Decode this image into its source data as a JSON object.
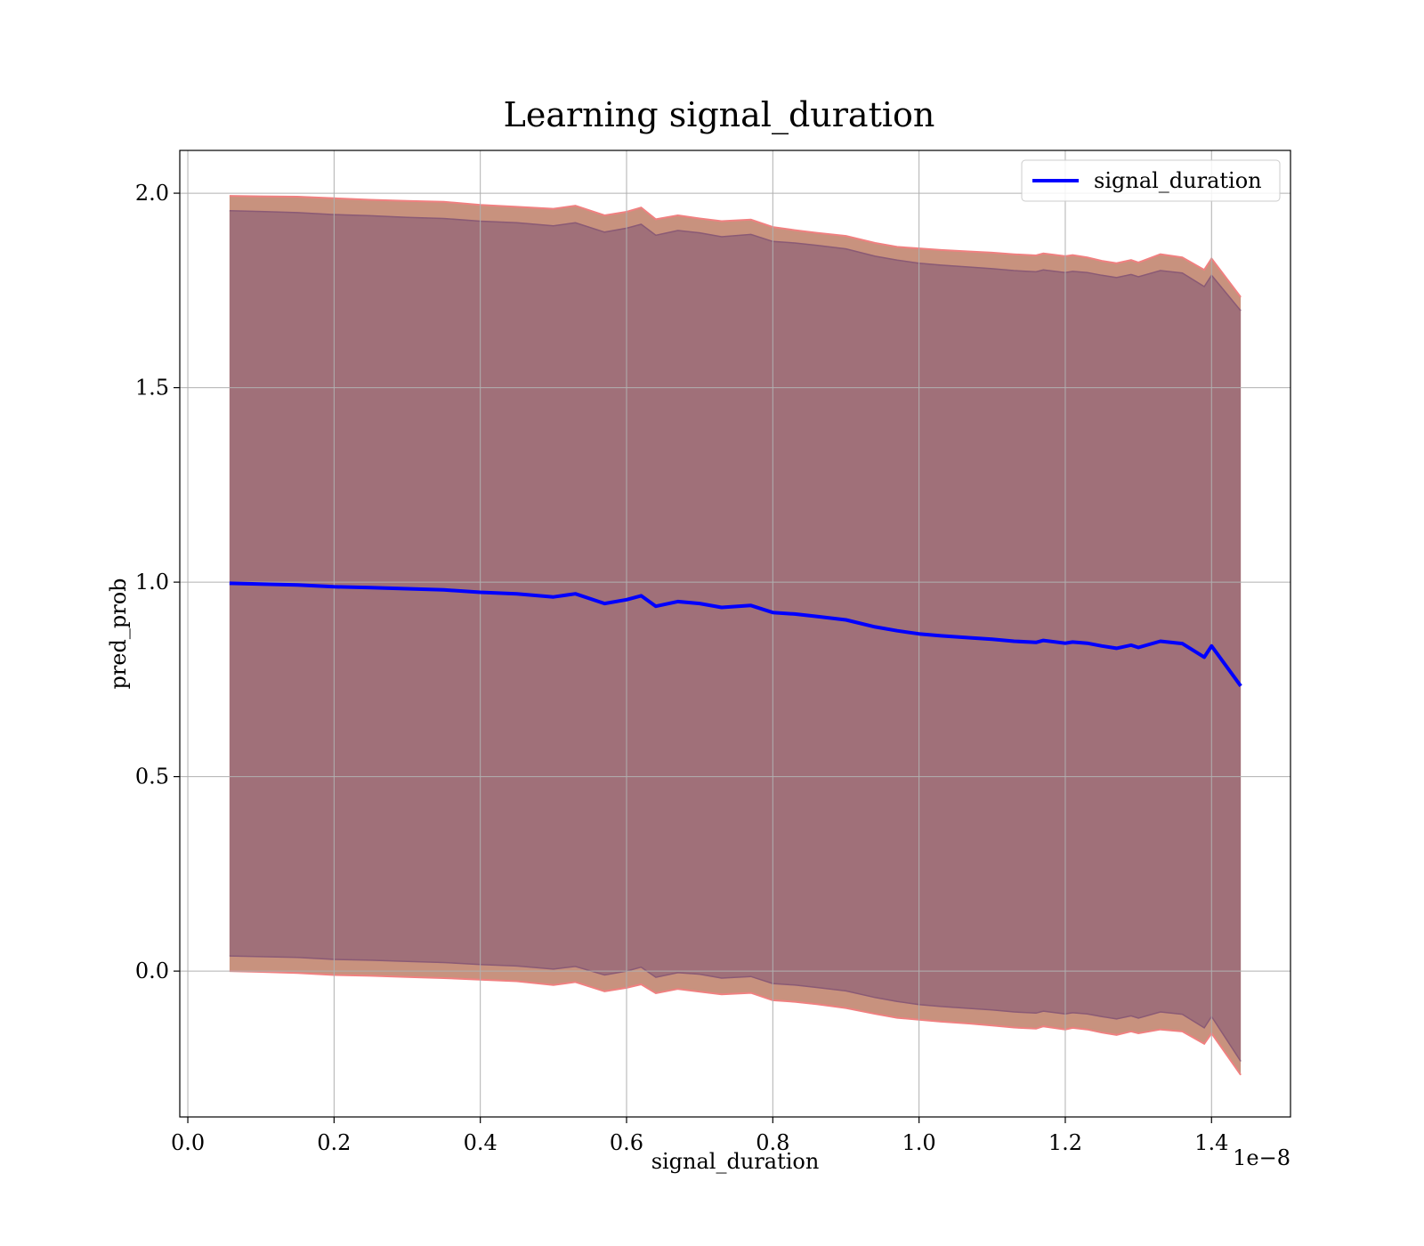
{
  "chart_data": {
    "type": "area",
    "title": "Learning signal_duration",
    "xlabel": "signal_duration",
    "ylabel": "pred_prob",
    "x_offset_label": "1e−8",
    "xlim": [
      -0.011,
      1.508
    ],
    "ylim": [
      -0.375,
      2.11
    ],
    "xticks": [
      0.0,
      0.2,
      0.4,
      0.6,
      0.8,
      1.0,
      1.2,
      1.4
    ],
    "xtick_labels": [
      "0.0",
      "0.2",
      "0.4",
      "0.6",
      "0.8",
      "1.0",
      "1.2",
      "1.4"
    ],
    "yticks": [
      0.0,
      0.5,
      1.0,
      1.5,
      2.0
    ],
    "ytick_labels": [
      "0.0",
      "0.5",
      "1.0",
      "1.5",
      "2.0"
    ],
    "grid": true,
    "legend": {
      "position": "top-right",
      "entries": [
        "signal_duration"
      ]
    },
    "colors": {
      "line": "#0000ff",
      "inner_band": "#a07079",
      "outer_band": "#c8927e",
      "outer_band_edge": "#f08080",
      "inner_band_edge": "#8a5a75"
    },
    "x": [
      0.057,
      0.1,
      0.15,
      0.2,
      0.25,
      0.3,
      0.35,
      0.4,
      0.45,
      0.5,
      0.53,
      0.57,
      0.6,
      0.62,
      0.64,
      0.67,
      0.7,
      0.73,
      0.77,
      0.8,
      0.83,
      0.86,
      0.9,
      0.94,
      0.97,
      1.0,
      1.03,
      1.07,
      1.1,
      1.13,
      1.16,
      1.17,
      1.2,
      1.21,
      1.23,
      1.25,
      1.27,
      1.29,
      1.3,
      1.33,
      1.36,
      1.39,
      1.4,
      1.44
    ],
    "series": [
      {
        "name": "signal_duration",
        "values": [
          0.997,
          0.995,
          0.993,
          0.988,
          0.986,
          0.983,
          0.98,
          0.974,
          0.97,
          0.962,
          0.97,
          0.945,
          0.955,
          0.965,
          0.938,
          0.95,
          0.945,
          0.935,
          0.94,
          0.922,
          0.918,
          0.912,
          0.903,
          0.885,
          0.875,
          0.867,
          0.862,
          0.857,
          0.853,
          0.848,
          0.845,
          0.85,
          0.843,
          0.846,
          0.843,
          0.836,
          0.83,
          0.838,
          0.832,
          0.848,
          0.842,
          0.807,
          0.836,
          0.733
        ]
      }
    ],
    "bands": [
      {
        "role": "outer",
        "upper": [
          1.993,
          1.992,
          1.991,
          1.987,
          1.983,
          1.98,
          1.978,
          1.97,
          1.965,
          1.96,
          1.968,
          1.943,
          1.952,
          1.963,
          1.933,
          1.943,
          1.935,
          1.928,
          1.932,
          1.913,
          1.905,
          1.898,
          1.89,
          1.872,
          1.862,
          1.858,
          1.854,
          1.85,
          1.847,
          1.843,
          1.84,
          1.845,
          1.838,
          1.841,
          1.835,
          1.826,
          1.82,
          1.828,
          1.822,
          1.843,
          1.835,
          1.803,
          1.832,
          1.733
        ],
        "lower": [
          0.0,
          -0.002,
          -0.005,
          -0.01,
          -0.012,
          -0.015,
          -0.018,
          -0.022,
          -0.026,
          -0.036,
          -0.028,
          -0.052,
          -0.043,
          -0.034,
          -0.057,
          -0.046,
          -0.053,
          -0.06,
          -0.056,
          -0.075,
          -0.079,
          -0.085,
          -0.095,
          -0.11,
          -0.12,
          -0.125,
          -0.13,
          -0.135,
          -0.14,
          -0.145,
          -0.148,
          -0.142,
          -0.15,
          -0.146,
          -0.15,
          -0.158,
          -0.164,
          -0.155,
          -0.16,
          -0.15,
          -0.155,
          -0.187,
          -0.16,
          -0.267
        ]
      },
      {
        "role": "inner",
        "upper": [
          1.955,
          1.953,
          1.95,
          1.945,
          1.942,
          1.938,
          1.935,
          1.928,
          1.924,
          1.916,
          1.924,
          1.9,
          1.91,
          1.92,
          1.892,
          1.904,
          1.898,
          1.888,
          1.894,
          1.876,
          1.872,
          1.866,
          1.857,
          1.838,
          1.828,
          1.82,
          1.815,
          1.81,
          1.806,
          1.801,
          1.798,
          1.803,
          1.796,
          1.799,
          1.796,
          1.789,
          1.783,
          1.791,
          1.785,
          1.801,
          1.795,
          1.76,
          1.789,
          1.698
        ],
        "lower": [
          0.039,
          0.037,
          0.035,
          0.03,
          0.028,
          0.025,
          0.022,
          0.017,
          0.013,
          0.005,
          0.012,
          -0.01,
          0.0,
          0.01,
          -0.016,
          -0.004,
          -0.008,
          -0.018,
          -0.014,
          -0.032,
          -0.036,
          -0.042,
          -0.051,
          -0.068,
          -0.078,
          -0.086,
          -0.091,
          -0.096,
          -0.1,
          -0.105,
          -0.108,
          -0.103,
          -0.11,
          -0.107,
          -0.11,
          -0.117,
          -0.123,
          -0.115,
          -0.121,
          -0.105,
          -0.111,
          -0.146,
          -0.117,
          -0.232
        ]
      }
    ]
  }
}
